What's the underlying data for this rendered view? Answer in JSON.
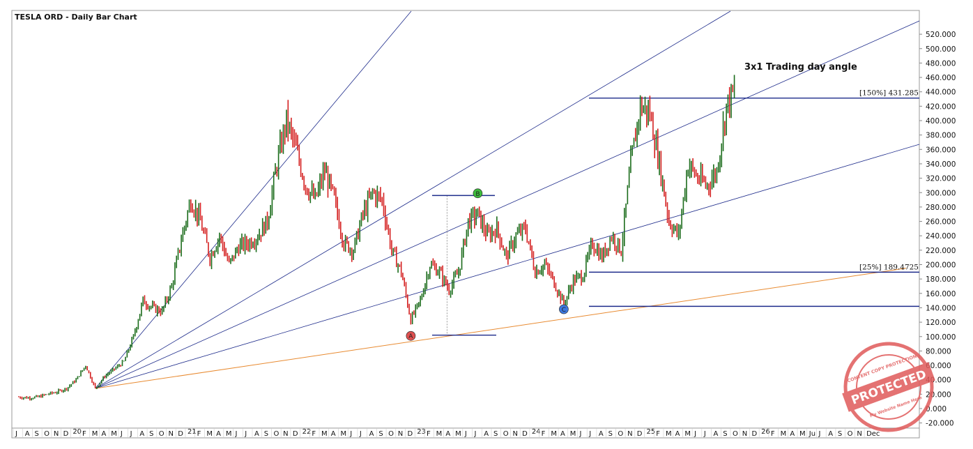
{
  "chart_data": {
    "type": "bar",
    "title": "TESLA ORD - Daily Bar Chart",
    "annotation": "3x1 Trading day angle",
    "y_ticks": [
      "520.000",
      "500.000",
      "480.000",
      "460.000",
      "440.000",
      "420.000",
      "400.000",
      "380.000",
      "360.000",
      "340.000",
      "320.000",
      "300.000",
      "280.000",
      "260.000",
      "240.000",
      "220.000",
      "200.000",
      "180.000",
      "160.000",
      "140.000",
      "120.000",
      "100.000",
      "80.000",
      "60.000",
      "40.000",
      "20.000",
      "0.000",
      "-20.000"
    ],
    "y_values": [
      520,
      500,
      480,
      460,
      440,
      420,
      400,
      380,
      360,
      340,
      320,
      300,
      280,
      260,
      240,
      220,
      200,
      180,
      160,
      140,
      120,
      100,
      80,
      60,
      40,
      20,
      0,
      -20
    ],
    "ylim": [
      -30,
      535
    ],
    "x_labels": [
      "J",
      "A",
      "S",
      "O",
      "N",
      "D",
      "20",
      "F",
      "M",
      "A",
      "M",
      "J",
      "J",
      "A",
      "S",
      "O",
      "N",
      "D",
      "21",
      "F",
      "M",
      "A",
      "M",
      "J",
      "J",
      "A",
      "S",
      "O",
      "N",
      "D",
      "22",
      "F",
      "M",
      "A",
      "M",
      "J",
      "J",
      "A",
      "S",
      "O",
      "N",
      "D",
      "23",
      "F",
      "M",
      "A",
      "M",
      "J",
      "J",
      "A",
      "S",
      "O",
      "N",
      "D",
      "24",
      "F",
      "M",
      "A",
      "M",
      "J",
      "J",
      "A",
      "S",
      "O",
      "N",
      "D",
      "25",
      "F",
      "M",
      "A",
      "M",
      "J",
      "J",
      "A",
      "S",
      "O",
      "N",
      "D",
      "26",
      "F",
      "M",
      "A",
      "M",
      "Ju",
      "J",
      "A",
      "S",
      "O",
      "N",
      "Dec"
    ],
    "series": [
      {
        "x": "2019-07",
        "value": 16
      },
      {
        "x": "2019-08",
        "value": 15
      },
      {
        "x": "2019-09",
        "value": 16
      },
      {
        "x": "2019-10",
        "value": 20
      },
      {
        "x": "2019-11",
        "value": 23
      },
      {
        "x": "2019-12",
        "value": 28
      },
      {
        "x": "2020-01",
        "value": 40
      },
      {
        "x": "2020-02",
        "value": 60
      },
      {
        "x": "2020-03",
        "value": 28
      },
      {
        "x": "2020-04",
        "value": 45
      },
      {
        "x": "2020-05",
        "value": 55
      },
      {
        "x": "2020-06",
        "value": 65
      },
      {
        "x": "2020-07",
        "value": 100
      },
      {
        "x": "2020-08",
        "value": 150
      },
      {
        "x": "2020-09",
        "value": 140
      },
      {
        "x": "2020-10",
        "value": 135
      },
      {
        "x": "2020-11",
        "value": 170
      },
      {
        "x": "2020-12",
        "value": 235
      },
      {
        "x": "2021-01",
        "value": 290
      },
      {
        "x": "2021-02",
        "value": 260
      },
      {
        "x": "2021-03",
        "value": 210
      },
      {
        "x": "2021-04",
        "value": 240
      },
      {
        "x": "2021-05",
        "value": 200
      },
      {
        "x": "2021-06",
        "value": 225
      },
      {
        "x": "2021-07",
        "value": 230
      },
      {
        "x": "2021-08",
        "value": 240
      },
      {
        "x": "2021-09",
        "value": 260
      },
      {
        "x": "2021-10",
        "value": 340
      },
      {
        "x": "2021-11",
        "value": 400
      },
      {
        "x": "2021-12",
        "value": 360
      },
      {
        "x": "2022-01",
        "value": 310
      },
      {
        "x": "2022-02",
        "value": 290
      },
      {
        "x": "2022-03",
        "value": 330
      },
      {
        "x": "2022-04",
        "value": 290
      },
      {
        "x": "2022-05",
        "value": 230
      },
      {
        "x": "2022-06",
        "value": 220
      },
      {
        "x": "2022-07",
        "value": 270
      },
      {
        "x": "2022-08",
        "value": 300
      },
      {
        "x": "2022-09",
        "value": 290
      },
      {
        "x": "2022-10",
        "value": 220
      },
      {
        "x": "2022-11",
        "value": 190
      },
      {
        "x": "2022-12",
        "value": 123
      },
      {
        "x": "2023-01",
        "value": 150
      },
      {
        "x": "2023-02",
        "value": 200
      },
      {
        "x": "2023-03",
        "value": 190
      },
      {
        "x": "2023-04",
        "value": 165
      },
      {
        "x": "2023-05",
        "value": 190
      },
      {
        "x": "2023-06",
        "value": 260
      },
      {
        "x": "2023-07",
        "value": 270
      },
      {
        "x": "2023-08",
        "value": 240
      },
      {
        "x": "2023-09",
        "value": 250
      },
      {
        "x": "2023-10",
        "value": 210
      },
      {
        "x": "2023-11",
        "value": 240
      },
      {
        "x": "2023-12",
        "value": 250
      },
      {
        "x": "2024-01",
        "value": 190
      },
      {
        "x": "2024-02",
        "value": 200
      },
      {
        "x": "2024-03",
        "value": 175
      },
      {
        "x": "2024-04",
        "value": 145
      },
      {
        "x": "2024-05",
        "value": 178
      },
      {
        "x": "2024-06",
        "value": 185
      },
      {
        "x": "2024-07",
        "value": 230
      },
      {
        "x": "2024-08",
        "value": 210
      },
      {
        "x": "2024-09",
        "value": 240
      },
      {
        "x": "2024-10",
        "value": 220
      },
      {
        "x": "2024-11",
        "value": 340
      },
      {
        "x": "2024-12",
        "value": 420
      },
      {
        "x": "2025-01",
        "value": 410
      },
      {
        "x": "2025-02",
        "value": 340
      },
      {
        "x": "2025-03",
        "value": 260
      },
      {
        "x": "2025-04",
        "value": 240
      },
      {
        "x": "2025-05",
        "value": 340
      },
      {
        "x": "2025-06",
        "value": 320
      },
      {
        "x": "2025-07",
        "value": 310
      },
      {
        "x": "2025-08",
        "value": 330
      },
      {
        "x": "2025-09",
        "value": 420
      },
      {
        "x": "2025-10",
        "value": 445
      }
    ],
    "levels": [
      {
        "label": "[150%] 431.285",
        "value": 431.285
      },
      {
        "label": "[25%] 189.4725",
        "value": 189.4725
      },
      {
        "label": "",
        "value": 296
      },
      {
        "label": "",
        "value": 102
      },
      {
        "label": "",
        "value": 142
      }
    ],
    "points": [
      {
        "label": "A",
        "date": "2022-12",
        "value": 101,
        "color": "#e05050"
      },
      {
        "label": "B",
        "date": "2023-07",
        "value": 299,
        "color": "#3cbb3c"
      },
      {
        "label": "C",
        "date": "2024-04",
        "value": 138,
        "color": "#3c78e0"
      }
    ],
    "colors": {
      "up_bar": "#1a6b1a",
      "down_bar": "#d42020",
      "fan_lines": "#1c2a8a",
      "level_lines": "#1c2a8a",
      "orange_line": "#e88a30",
      "stamp": "#e05a5a"
    },
    "stamp": {
      "top": "CONTENT COPY PROTECTION",
      "middle": "PROTECTED",
      "bottom": "My Website Name Here"
    },
    "grid": false,
    "legend": "none"
  }
}
